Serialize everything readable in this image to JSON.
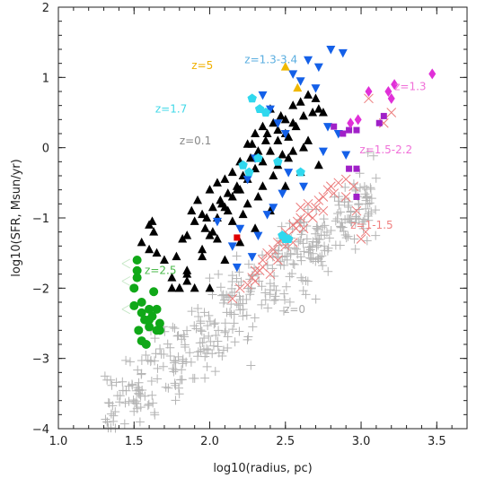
{
  "chart_data": {
    "type": "scatter",
    "xlabel": "log10(radius, pc)",
    "ylabel": "log10(SFR, Msun/yr)",
    "xlim": [
      1.0,
      3.7
    ],
    "ylim": [
      -4.0,
      2.0
    ],
    "x_ticks": [
      "1.0",
      "1.5",
      "2.0",
      "2.5",
      "3.0",
      "3.5"
    ],
    "y_ticks": [
      "-4",
      "-3",
      "-2",
      "-1",
      "0",
      "1",
      "2"
    ],
    "grid": false,
    "legend": "none",
    "annotations": [
      {
        "text": "z=5",
        "x": 1.88,
        "y": 1.12,
        "color": "#f0b000"
      },
      {
        "text": "z=1.3-3.4",
        "x": 2.23,
        "y": 1.2,
        "color": "#5aaee0"
      },
      {
        "text": "z=1.7",
        "x": 1.64,
        "y": 0.5,
        "color": "#40d8e8"
      },
      {
        "text": "z=0.1",
        "x": 1.8,
        "y": 0.05,
        "color": "#888888"
      },
      {
        "text": "z=1.3",
        "x": 3.22,
        "y": 0.82,
        "color": "#f070d8"
      },
      {
        "text": "z=1.5-2.2",
        "x": 2.99,
        "y": -0.08,
        "color": "#f070d8"
      },
      {
        "text": "z=1-1.5",
        "x": 2.93,
        "y": -1.15,
        "color": "#f08080"
      },
      {
        "text": "z=2.5",
        "x": 1.57,
        "y": -1.8,
        "color": "#4ab84a"
      },
      {
        "text": "z=0",
        "x": 2.49,
        "y": -2.35,
        "color": "#aaaaaa"
      }
    ],
    "series": [
      {
        "marker": "plus",
        "color": "#b4b4b4",
        "generated": {
          "n": 420,
          "x_range": [
            1.3,
            3.1
          ],
          "slope": 1.75,
          "intercept": -6.1,
          "scatter": 0.45
        }
      },
      {
        "marker": "cross",
        "color": "#ec7a7a",
        "x": [
          2.15,
          2.25,
          2.3,
          2.35,
          2.4,
          2.45,
          2.5,
          2.55,
          2.6,
          2.62,
          2.65,
          2.7,
          2.72,
          2.75,
          2.78,
          2.8,
          2.85,
          2.9,
          2.3,
          2.35,
          2.42,
          2.48,
          2.52,
          2.58,
          2.65,
          2.2,
          2.28,
          2.38,
          2.55,
          2.68,
          2.75,
          2.82,
          2.9,
          2.95,
          2.6,
          2.5,
          2.45,
          2.33,
          2.4,
          2.57,
          3.03,
          3.0,
          2.97,
          3.15,
          3.2,
          3.05
        ],
        "y": [
          -2.15,
          -1.95,
          -1.75,
          -1.6,
          -1.55,
          -1.35,
          -1.2,
          -1.1,
          -1.0,
          -1.15,
          -0.95,
          -0.85,
          -0.75,
          -0.7,
          -0.6,
          -0.55,
          -0.5,
          -0.45,
          -1.9,
          -1.7,
          -1.45,
          -1.3,
          -1.25,
          -1.05,
          -0.8,
          -2.0,
          -1.85,
          -1.5,
          -1.35,
          -1.0,
          -0.9,
          -0.65,
          -0.7,
          -0.55,
          -0.85,
          -1.4,
          -1.6,
          -1.75,
          -1.8,
          -1.15,
          -1.2,
          -1.3,
          -0.9,
          0.35,
          0.5,
          0.7
        ]
      },
      {
        "marker": "triangle",
        "color": "#000000",
        "x": [
          1.55,
          1.6,
          1.63,
          1.65,
          1.7,
          1.75,
          1.78,
          1.82,
          1.85,
          1.88,
          1.9,
          1.92,
          1.95,
          1.97,
          2.0,
          2.02,
          2.05,
          2.07,
          2.1,
          2.12,
          2.15,
          2.18,
          2.2,
          2.22,
          2.25,
          2.27,
          2.3,
          2.32,
          2.35,
          2.37,
          2.4,
          2.42,
          2.45,
          2.47,
          2.5,
          2.52,
          2.55,
          2.57,
          2.6,
          2.62,
          2.65,
          2.68,
          2.7,
          2.72,
          2.75,
          1.8,
          1.85,
          1.95,
          2.0,
          2.05,
          2.1,
          2.15,
          2.2,
          2.25,
          2.3,
          2.35,
          2.4,
          2.45,
          2.5,
          2.55,
          1.9,
          2.0,
          2.1,
          2.2,
          2.3,
          2.4,
          2.5,
          2.6,
          1.85,
          1.95,
          2.05,
          2.15,
          2.25,
          2.35,
          2.45,
          2.55,
          2.65,
          2.28,
          2.38,
          2.48,
          1.75,
          1.8,
          1.85,
          1.6,
          1.62,
          2.22,
          2.32,
          2.42,
          2.52,
          2.62,
          2.72,
          2.12,
          2.02,
          1.98,
          2.08,
          2.18
        ],
        "y": [
          -1.35,
          -1.1,
          -1.2,
          -1.5,
          -1.6,
          -1.85,
          -1.55,
          -1.3,
          -1.25,
          -0.9,
          -1.05,
          -0.75,
          -0.95,
          -1.15,
          -0.6,
          -0.85,
          -0.5,
          -0.75,
          -0.45,
          -0.65,
          -0.35,
          -0.55,
          -0.2,
          -0.4,
          0.05,
          -0.15,
          0.2,
          -0.05,
          0.3,
          0.1,
          0.55,
          0.35,
          0.25,
          0.45,
          0.4,
          0.15,
          0.6,
          0.3,
          0.65,
          0.45,
          0.75,
          0.5,
          0.7,
          0.55,
          0.5,
          -2.0,
          -1.75,
          -1.45,
          -1.25,
          -1.0,
          -0.85,
          -0.7,
          -0.6,
          -0.45,
          -0.3,
          -0.2,
          -0.05,
          0.1,
          0.2,
          0.35,
          -2.0,
          -2.0,
          -1.6,
          -1.35,
          -1.15,
          -0.9,
          -0.55,
          -0.35,
          -1.8,
          -1.55,
          -1.3,
          -1.05,
          -0.8,
          -0.55,
          -0.25,
          -0.05,
          0.1,
          0.05,
          0.2,
          -0.1,
          -2.0,
          -2.0,
          -1.9,
          -1.45,
          -1.05,
          -0.95,
          -0.7,
          -0.4,
          -0.15,
          0.0,
          -0.25,
          -0.9,
          -1.2,
          -1.0,
          -0.8,
          -0.6
        ]
      },
      {
        "marker": "triangle-down",
        "color": "#1460e8",
        "x": [
          2.8,
          2.88,
          2.65,
          2.72,
          2.55,
          2.6,
          2.35,
          2.4,
          2.45,
          2.5,
          2.3,
          2.25,
          2.2,
          2.15,
          2.18,
          2.05,
          2.7,
          2.78,
          2.85,
          2.9,
          2.52,
          2.48,
          2.42,
          2.38,
          2.32,
          2.28,
          2.62,
          2.75
        ],
        "y": [
          1.4,
          1.35,
          1.25,
          1.15,
          1.05,
          0.95,
          0.75,
          0.55,
          0.35,
          0.2,
          -0.15,
          -0.45,
          -1.15,
          -1.4,
          -1.7,
          -1.05,
          0.85,
          0.3,
          0.2,
          -0.1,
          -0.35,
          -0.65,
          -0.85,
          -0.95,
          -1.25,
          -1.55,
          -0.55,
          -0.05
        ]
      },
      {
        "marker": "pentagon",
        "color": "#30d8ee",
        "x": [
          2.28,
          2.33,
          2.37,
          2.32,
          2.22,
          2.26,
          2.48,
          2.52,
          2.5,
          2.45,
          2.6
        ],
        "y": [
          0.7,
          0.55,
          0.5,
          -0.15,
          -0.25,
          -0.35,
          -1.25,
          -1.3,
          -1.3,
          -0.2,
          -0.35
        ]
      },
      {
        "marker": "triangle",
        "color": "#f0b800",
        "x": [
          2.5,
          2.58
        ],
        "y": [
          1.15,
          0.85
        ]
      },
      {
        "marker": "square",
        "color": "#a020c8",
        "x": [
          2.82,
          2.88,
          2.92,
          2.97,
          3.12,
          3.15,
          2.92,
          2.97,
          2.97
        ],
        "y": [
          0.3,
          0.2,
          0.25,
          0.25,
          0.35,
          0.45,
          -0.3,
          -0.3,
          -0.7
        ]
      },
      {
        "marker": "diamond",
        "color": "#e030d8",
        "x": [
          3.47,
          3.22,
          3.18,
          3.05,
          2.98,
          2.93,
          3.2
        ],
        "y": [
          1.05,
          0.9,
          0.8,
          0.8,
          0.4,
          0.35,
          0.7
        ]
      },
      {
        "marker": "circle",
        "color": "#10a818",
        "x": [
          1.52,
          1.52,
          1.52,
          1.5,
          1.5,
          1.55,
          1.55,
          1.57,
          1.6,
          1.6,
          1.62,
          1.65,
          1.65,
          1.67,
          1.53,
          1.58,
          1.63,
          1.55,
          1.6,
          1.67
        ],
        "y": [
          -1.6,
          -1.75,
          -1.85,
          -2.0,
          -2.25,
          -2.2,
          -2.35,
          -2.45,
          -2.3,
          -2.55,
          -2.4,
          -2.3,
          -2.6,
          -2.6,
          -2.6,
          -2.8,
          -2.05,
          -2.75,
          -2.45,
          -2.5
        ]
      },
      {
        "marker": "open-triangle-left",
        "color": "#c8e8c8",
        "x": [
          1.45,
          1.45,
          1.45
        ],
        "y": [
          -1.65,
          -1.9,
          -2.3
        ]
      },
      {
        "marker": "square",
        "color": "#e00000",
        "x": [
          2.18
        ],
        "y": [
          -1.28
        ]
      }
    ]
  }
}
